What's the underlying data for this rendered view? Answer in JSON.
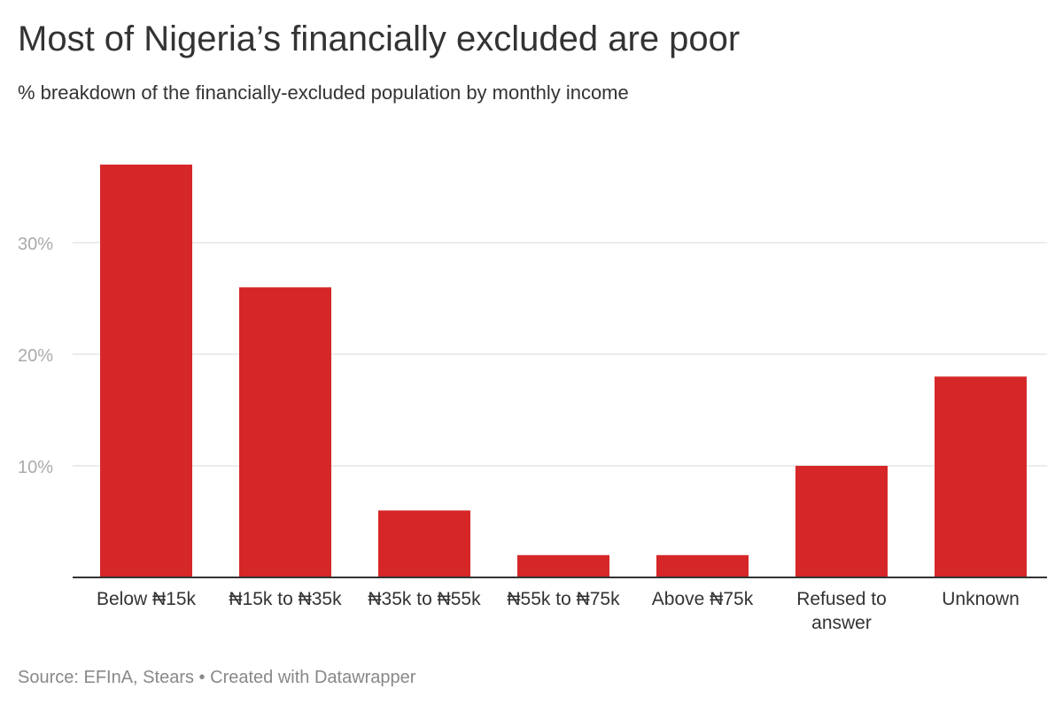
{
  "header": {
    "title": "Most of Nigeria’s financially excluded are poor",
    "subtitle": "% breakdown of the financially-excluded population by monthly income"
  },
  "footer": {
    "source": "Source: EFInA, Stears",
    "separator": "•",
    "credit": "Created with Datawrapper"
  },
  "colors": {
    "bar": "#d62728",
    "grid": "#e6e6e6",
    "baseline": "#333333",
    "tick_label": "#aaaaaa",
    "category_label": "#333333"
  },
  "chart_data": {
    "type": "bar",
    "title": "Most of Nigeria’s financially excluded are poor",
    "subtitle": "% breakdown of the financially-excluded population by monthly income",
    "categories": [
      [
        "Below ₦15k"
      ],
      [
        "₦15k to ₦35k"
      ],
      [
        "₦35k to ₦55k"
      ],
      [
        "₦55k to ₦75k"
      ],
      [
        "Above ₦75k"
      ],
      [
        "Refused to",
        "answer"
      ],
      [
        "Unknown"
      ]
    ],
    "values": [
      37,
      26,
      6,
      2,
      2,
      10,
      18
    ],
    "ylim": [
      0,
      40
    ],
    "yticks": [
      10,
      20,
      30
    ],
    "ytick_labels": [
      "10%",
      "20%",
      "30%"
    ],
    "xlabel": "",
    "ylabel": "",
    "grid": true,
    "legend": "none"
  }
}
